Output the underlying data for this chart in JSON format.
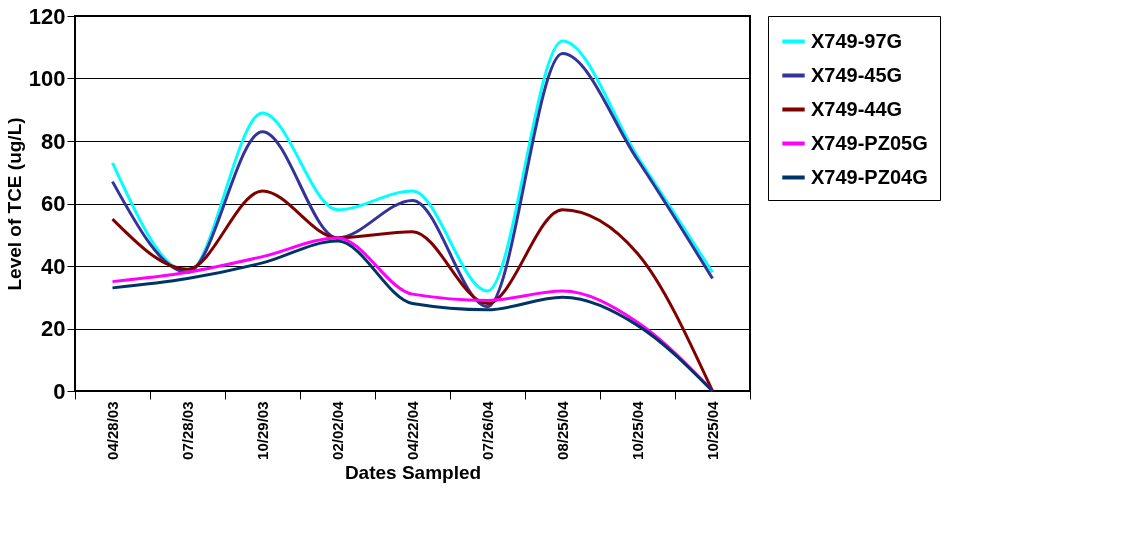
{
  "chart_data": {
    "type": "line",
    "xlabel": "Dates Sampled",
    "ylabel": "Level of TCE (ug/L)",
    "categories": [
      "04/28/03",
      "07/28/03",
      "10/29/03",
      "02/02/04",
      "04/22/04",
      "07/26/04",
      "08/25/04",
      "10/25/04",
      "10/25/04"
    ],
    "series": [
      {
        "name": "X749-97G",
        "color": "#00ffff",
        "values": [
          73,
          38,
          89,
          58,
          64,
          32,
          112,
          75,
          38
        ]
      },
      {
        "name": "X749-45G",
        "color": "#333399",
        "values": [
          67,
          38,
          83,
          49,
          61,
          27,
          108,
          74,
          36
        ]
      },
      {
        "name": "X749-44G",
        "color": "#800000",
        "values": [
          55,
          39,
          64,
          49,
          51,
          28,
          58,
          44,
          0
        ]
      },
      {
        "name": "X749-PZ05G",
        "color": "#ff00ff",
        "values": [
          35,
          38,
          43,
          49,
          31,
          29,
          32,
          22,
          0
        ]
      },
      {
        "name": "X749-PZ04G",
        "color": "#003366",
        "values": [
          33,
          36,
          41,
          48,
          28,
          26,
          30,
          21,
          0
        ]
      }
    ],
    "ylim": [
      0,
      120
    ],
    "yticks": [
      0,
      20,
      40,
      60,
      80,
      100,
      120
    ],
    "grid": "y",
    "legend": "right",
    "marker": "none",
    "line_style": "solid"
  }
}
